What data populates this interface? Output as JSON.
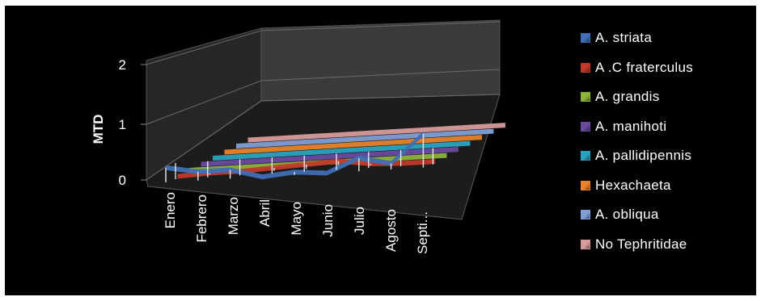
{
  "chart_data": {
    "type": "line",
    "style": "3d",
    "title": "",
    "xlabel": "",
    "ylabel": "MTD",
    "ylim": [
      0,
      2
    ],
    "yticks": [
      "0",
      "1",
      "2"
    ],
    "grid": true,
    "legend_position": "right",
    "categories": [
      "Enero",
      "Febrero",
      "Marzo",
      "Abril",
      "Mayo",
      "Junio",
      "Julio",
      "Agosto",
      "Septi..."
    ],
    "series": [
      {
        "name": "A. striata",
        "color": "#3f6fb5",
        "values": [
          0.5,
          0.3,
          0.3,
          0.0,
          0.1,
          0.0,
          0.45,
          0.2,
          1.15
        ]
      },
      {
        "name": "A .C fraterculus",
        "color": "#c0392b",
        "values": [
          0.0,
          0.05,
          0.05,
          0.1,
          0.15,
          0.2,
          0.05,
          0.0,
          0.0
        ]
      },
      {
        "name": "A. grandis",
        "color": "#8db33a",
        "values": [
          0,
          0,
          0,
          0,
          0,
          0,
          0,
          0,
          0
        ]
      },
      {
        "name": "A. manihoti",
        "color": "#6b4aa0",
        "values": [
          0,
          0,
          0,
          0,
          0,
          0,
          0,
          0,
          0
        ]
      },
      {
        "name": "A. pallidipennis",
        "color": "#2aa3bf",
        "values": [
          0,
          0,
          0,
          0,
          0,
          0,
          0,
          0,
          0
        ]
      },
      {
        "name": "Hexachaeta",
        "color": "#e8822a",
        "values": [
          0,
          0,
          0,
          0,
          0,
          0,
          0,
          0,
          0
        ]
      },
      {
        "name": "A. obliqua",
        "color": "#7f9fd6",
        "values": [
          0,
          0,
          0,
          0,
          0,
          0,
          0,
          0,
          0
        ]
      },
      {
        "name": "No Tephritidae",
        "color": "#d89a9a",
        "values": [
          0,
          0,
          0,
          0,
          0,
          0,
          0,
          0,
          0
        ]
      }
    ]
  }
}
